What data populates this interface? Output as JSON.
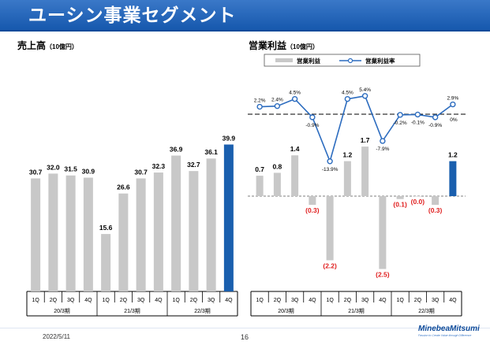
{
  "header": {
    "title": "ユーシン事業セグメント"
  },
  "left_chart": {
    "title": "売上高",
    "unit": "（10億円）"
  },
  "right_chart": {
    "title": "営業利益",
    "unit": "（10億円）"
  },
  "footer": {
    "date": "2022/5/11",
    "page": "16",
    "brand": "MinebeaMitsumi",
    "tagline": "Passion to Create Value through Difference"
  },
  "colors": {
    "bar_gray": "#c8c8c8",
    "bar_highlight": "#1a5fae",
    "line": "#2c6cbf",
    "negative_label": "#e02020"
  },
  "chart_data": [
    {
      "type": "bar",
      "title": "売上高",
      "unit": "（10億円）",
      "categories": [
        "1Q",
        "2Q",
        "3Q",
        "4Q",
        "1Q",
        "2Q",
        "3Q",
        "4Q",
        "1Q",
        "2Q",
        "3Q",
        "4Q"
      ],
      "groups": [
        {
          "label": "20/3期",
          "start": 0,
          "end": 3
        },
        {
          "label": "21/3期",
          "start": 4,
          "end": 7
        },
        {
          "label": "22/3期",
          "start": 8,
          "end": 11
        }
      ],
      "values": [
        30.7,
        32.0,
        31.5,
        30.9,
        15.6,
        26.6,
        30.7,
        32.3,
        36.9,
        32.7,
        36.1,
        39.9
      ],
      "labels": [
        "30.7",
        "32.0",
        "31.5",
        "30.9",
        "15.6",
        "26.6",
        "30.7",
        "32.3",
        "36.9",
        "32.7",
        "36.1",
        "39.9"
      ],
      "highlight_index": 11,
      "ylim": [
        0,
        41.5
      ]
    },
    {
      "type": "bar+line",
      "title": "営業利益",
      "unit": "（10億円）",
      "categories": [
        "1Q",
        "2Q",
        "3Q",
        "4Q",
        "1Q",
        "2Q",
        "3Q",
        "4Q",
        "1Q",
        "2Q",
        "3Q",
        "4Q"
      ],
      "groups": [
        {
          "label": "20/3期",
          "start": 0,
          "end": 3
        },
        {
          "label": "21/3期",
          "start": 4,
          "end": 7
        },
        {
          "label": "22/3期",
          "start": 8,
          "end": 11
        }
      ],
      "series": [
        {
          "name": "営業利益",
          "type": "bar",
          "values": [
            0.7,
            0.8,
            1.4,
            -0.3,
            -2.2,
            1.2,
            1.7,
            -2.5,
            -0.1,
            0.0,
            -0.3,
            1.2
          ],
          "labels": [
            "0.7",
            "0.8",
            "1.4",
            "(0.3)",
            "(2.2)",
            "1.2",
            "1.7",
            "(2.5)",
            "(0.1)",
            "(0.0)",
            "(0.3)",
            "1.2"
          ]
        },
        {
          "name": "営業利益率",
          "type": "line",
          "values": [
            2.2,
            2.4,
            4.5,
            -0.9,
            -13.9,
            4.5,
            5.4,
            -7.9,
            -0.2,
            -0.1,
            -0.9,
            2.9
          ],
          "labels": [
            "2.2%",
            "2.4%",
            "4.5%",
            "-0.9%",
            "-13.9%",
            "4.5%",
            "5.4%",
            "-7.9%",
            "-0.2%",
            "-0.1%",
            "-0.9%",
            "2.9%"
          ]
        }
      ],
      "zero_label": "0%",
      "highlight_index": 11,
      "legend": "top"
    }
  ]
}
